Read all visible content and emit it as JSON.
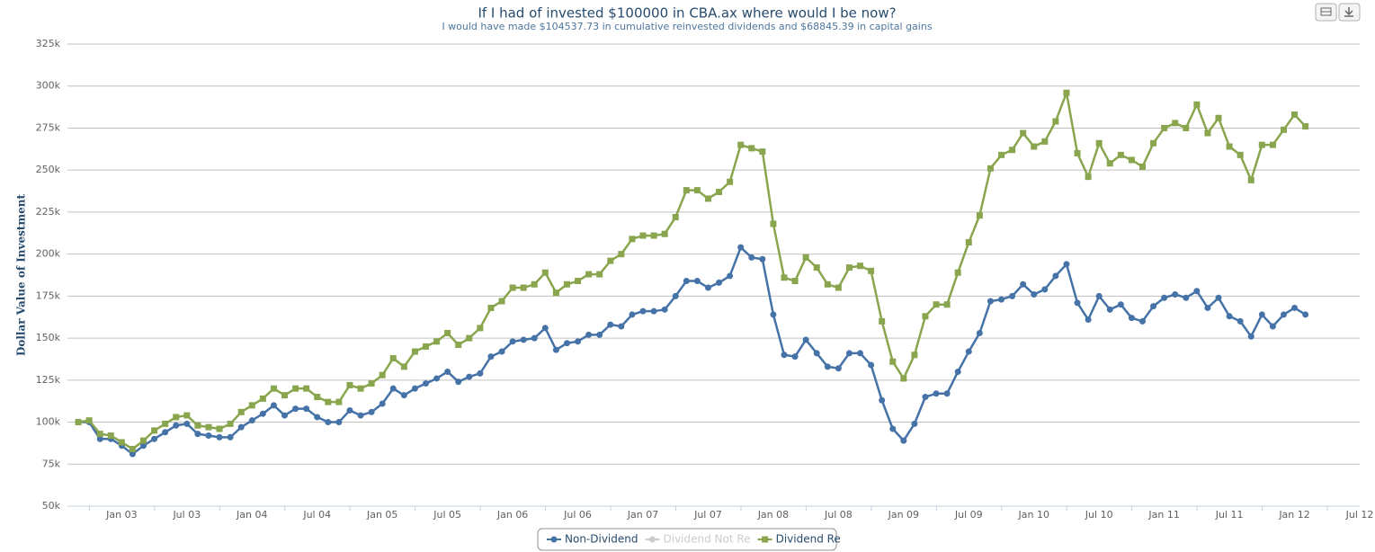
{
  "chart_data": {
    "type": "line",
    "title": "If I had of invested $100000 in CBA.ax where would I be now?",
    "subtitle": "I would have made $104537.73 in cumulative reinvested dividends and $68845.39 in capital gains",
    "y_label": "Dollar Value of Investment",
    "x": [
      "2002-09",
      "2002-10",
      "2002-11",
      "2002-12",
      "2003-01",
      "2003-02",
      "2003-03",
      "2003-04",
      "2003-05",
      "2003-06",
      "2003-07",
      "2003-08",
      "2003-09",
      "2003-10",
      "2003-11",
      "2003-12",
      "2004-01",
      "2004-02",
      "2004-03",
      "2004-04",
      "2004-05",
      "2004-06",
      "2004-07",
      "2004-08",
      "2004-09",
      "2004-10",
      "2004-11",
      "2004-12",
      "2005-01",
      "2005-02",
      "2005-03",
      "2005-04",
      "2005-05",
      "2005-06",
      "2005-07",
      "2005-08",
      "2005-09",
      "2005-10",
      "2005-11",
      "2005-12",
      "2006-01",
      "2006-02",
      "2006-03",
      "2006-04",
      "2006-05",
      "2006-06",
      "2006-07",
      "2006-08",
      "2006-09",
      "2006-10",
      "2006-11",
      "2006-12",
      "2007-01",
      "2007-02",
      "2007-03",
      "2007-04",
      "2007-05",
      "2007-06",
      "2007-07",
      "2007-08",
      "2007-09",
      "2007-10",
      "2007-11",
      "2007-12",
      "2008-01",
      "2008-02",
      "2008-03",
      "2008-04",
      "2008-05",
      "2008-06",
      "2008-07",
      "2008-08",
      "2008-09",
      "2008-10",
      "2008-11",
      "2008-12",
      "2009-01",
      "2009-02",
      "2009-03",
      "2009-04",
      "2009-05",
      "2009-06",
      "2009-07",
      "2009-08",
      "2009-09",
      "2009-10",
      "2009-11",
      "2009-12",
      "2010-01",
      "2010-02",
      "2010-03",
      "2010-04",
      "2010-05",
      "2010-06",
      "2010-07",
      "2010-08",
      "2010-09",
      "2010-10",
      "2010-11",
      "2010-12",
      "2011-01",
      "2011-02",
      "2011-03",
      "2011-04",
      "2011-05",
      "2011-06",
      "2011-07",
      "2011-08",
      "2011-09",
      "2011-10",
      "2011-11",
      "2011-12",
      "2012-01",
      "2012-02"
    ],
    "series": [
      {
        "name": "Non-Dividend",
        "color": "#4572a7",
        "marker": "circle",
        "values": [
          100000,
          100000,
          90000,
          90000,
          86000,
          81000,
          86000,
          90000,
          94000,
          98000,
          99000,
          93000,
          92000,
          91000,
          91000,
          97000,
          101000,
          105000,
          110000,
          104000,
          108000,
          108000,
          103000,
          100000,
          100000,
          107000,
          104000,
          106000,
          111000,
          120000,
          116000,
          120000,
          123000,
          126000,
          130000,
          124000,
          127000,
          129000,
          139000,
          142000,
          148000,
          149000,
          150000,
          156000,
          143000,
          147000,
          148000,
          152000,
          152000,
          158000,
          157000,
          164000,
          166000,
          166000,
          167000,
          175000,
          184000,
          184000,
          180000,
          183000,
          187000,
          204000,
          198000,
          197000,
          164000,
          140000,
          139000,
          149000,
          141000,
          133000,
          132000,
          141000,
          141000,
          134000,
          113000,
          96000,
          89000,
          99000,
          115000,
          117000,
          117000,
          130000,
          142000,
          153000,
          172000,
          173000,
          175000,
          182000,
          176000,
          179000,
          187000,
          194000,
          171000,
          161000,
          175000,
          167000,
          170000,
          162000,
          160000,
          169000,
          174000,
          176000,
          174000,
          178000,
          168000,
          174000,
          163000,
          160000,
          151000,
          164000,
          157000,
          164000,
          168000,
          164000
        ]
      },
      {
        "name": "Dividend Not Re",
        "color": "#cccccc",
        "visible": false
      },
      {
        "name": "Dividend Re",
        "color": "#89a54e",
        "marker": "square",
        "values": [
          100000,
          101000,
          93000,
          92000,
          88000,
          84000,
          89000,
          95000,
          99000,
          103000,
          104000,
          98000,
          97000,
          96000,
          99000,
          106000,
          110000,
          114000,
          120000,
          116000,
          120000,
          120000,
          115000,
          112000,
          112000,
          122000,
          120000,
          123000,
          128000,
          138000,
          133000,
          142000,
          145000,
          148000,
          153000,
          146000,
          150000,
          156000,
          168000,
          172000,
          180000,
          180000,
          182000,
          189000,
          177000,
          182000,
          184000,
          188000,
          188000,
          196000,
          200000,
          209000,
          211000,
          211000,
          212000,
          222000,
          238000,
          238000,
          233000,
          237000,
          243000,
          265000,
          263000,
          261000,
          218000,
          186000,
          184000,
          198000,
          192000,
          182000,
          180000,
          192000,
          193000,
          190000,
          160000,
          136000,
          126000,
          140000,
          163000,
          170000,
          170000,
          189000,
          207000,
          223000,
          251000,
          259000,
          262000,
          272000,
          264000,
          267000,
          279000,
          296000,
          260000,
          246000,
          266000,
          254000,
          259000,
          256000,
          252000,
          266000,
          275000,
          278000,
          275000,
          289000,
          272000,
          281000,
          264000,
          259000,
          244000,
          265000,
          265000,
          274000,
          283000,
          276000
        ]
      }
    ],
    "xlim": [
      "2002-08",
      "2012-07"
    ],
    "xticks": [
      {
        "value": "2003-01",
        "label": "Jan 03"
      },
      {
        "value": "2003-07",
        "label": "Jul 03"
      },
      {
        "value": "2004-01",
        "label": "Jan 04"
      },
      {
        "value": "2004-07",
        "label": "Jul 04"
      },
      {
        "value": "2005-01",
        "label": "Jan 05"
      },
      {
        "value": "2005-07",
        "label": "Jul 05"
      },
      {
        "value": "2006-01",
        "label": "Jan 06"
      },
      {
        "value": "2006-07",
        "label": "Jul 06"
      },
      {
        "value": "2007-01",
        "label": "Jan 07"
      },
      {
        "value": "2007-07",
        "label": "Jul 07"
      },
      {
        "value": "2008-01",
        "label": "Jan 08"
      },
      {
        "value": "2008-07",
        "label": "Jul 08"
      },
      {
        "value": "2009-01",
        "label": "Jan 09"
      },
      {
        "value": "2009-07",
        "label": "Jul 09"
      },
      {
        "value": "2010-01",
        "label": "Jan 10"
      },
      {
        "value": "2010-07",
        "label": "Jul 10"
      },
      {
        "value": "2011-01",
        "label": "Jan 11"
      },
      {
        "value": "2011-07",
        "label": "Jul 11"
      },
      {
        "value": "2012-01",
        "label": "Jan 12"
      },
      {
        "value": "2012-07",
        "label": "Jul 12"
      }
    ],
    "ylim": [
      50000,
      325000
    ],
    "yticks": [
      {
        "value": 50000,
        "label": "50k"
      },
      {
        "value": 75000,
        "label": "75k"
      },
      {
        "value": 100000,
        "label": "100k"
      },
      {
        "value": 125000,
        "label": "125k"
      },
      {
        "value": 150000,
        "label": "150k"
      },
      {
        "value": 175000,
        "label": "175k"
      },
      {
        "value": 200000,
        "label": "200k"
      },
      {
        "value": 225000,
        "label": "225k"
      },
      {
        "value": 250000,
        "label": "250k"
      },
      {
        "value": 275000,
        "label": "275k"
      },
      {
        "value": 300000,
        "label": "300k"
      },
      {
        "value": 325000,
        "label": "325k"
      }
    ],
    "grid": true,
    "legend": "bottom"
  }
}
